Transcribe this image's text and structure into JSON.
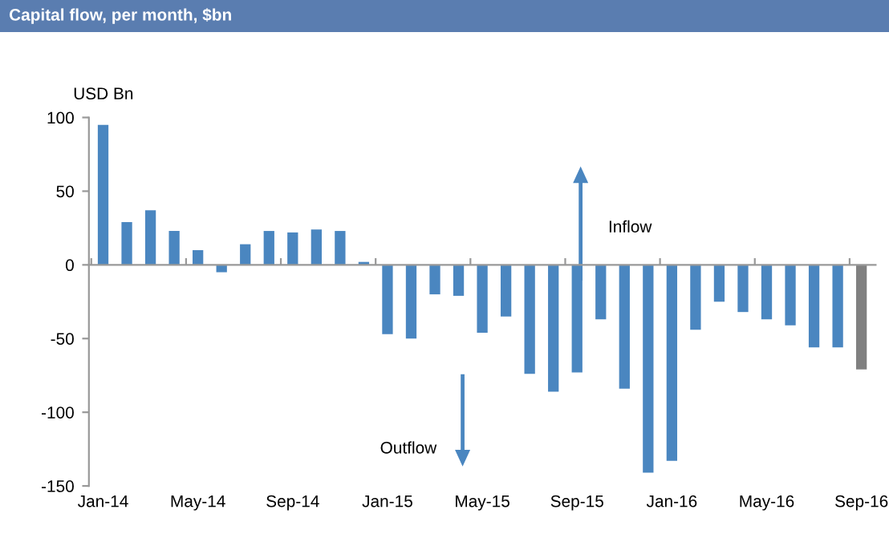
{
  "chart_data": {
    "type": "bar",
    "title": "Capital flow, per month, $bn",
    "ylabel": "USD Bn",
    "categories": [
      "Jan-14",
      null,
      null,
      null,
      "May-14",
      null,
      null,
      null,
      "Sep-14",
      null,
      null,
      null,
      "Jan-15",
      null,
      null,
      null,
      "May-15",
      null,
      null,
      null,
      "Sep-15",
      null,
      null,
      null,
      "Jan-16",
      null,
      null,
      null,
      "May-16",
      null,
      null,
      null,
      "Sep-16"
    ],
    "values": [
      95,
      29,
      37,
      23,
      10,
      -5,
      14,
      23,
      22,
      24,
      23,
      2,
      -47,
      -50,
      -20,
      -21,
      -46,
      -35,
      -74,
      -86,
      -73,
      -37,
      -84,
      -141,
      -133,
      -44,
      -25,
      -32,
      -37,
      -41,
      -56,
      -56,
      -71
    ],
    "colors": [
      "#4a86c0",
      "#4a86c0",
      "#4a86c0",
      "#4a86c0",
      "#4a86c0",
      "#4a86c0",
      "#4a86c0",
      "#4a86c0",
      "#4a86c0",
      "#4a86c0",
      "#4a86c0",
      "#4a86c0",
      "#4a86c0",
      "#4a86c0",
      "#4a86c0",
      "#4a86c0",
      "#4a86c0",
      "#4a86c0",
      "#4a86c0",
      "#4a86c0",
      "#4a86c0",
      "#4a86c0",
      "#4a86c0",
      "#4a86c0",
      "#4a86c0",
      "#4a86c0",
      "#4a86c0",
      "#4a86c0",
      "#4a86c0",
      "#4a86c0",
      "#4a86c0",
      "#4a86c0",
      "#808080"
    ],
    "ylim": [
      -150,
      100
    ],
    "yticks": [
      -150,
      -100,
      -50,
      0,
      50,
      100
    ],
    "annotations": [
      "Inflow",
      "Outflow"
    ]
  }
}
